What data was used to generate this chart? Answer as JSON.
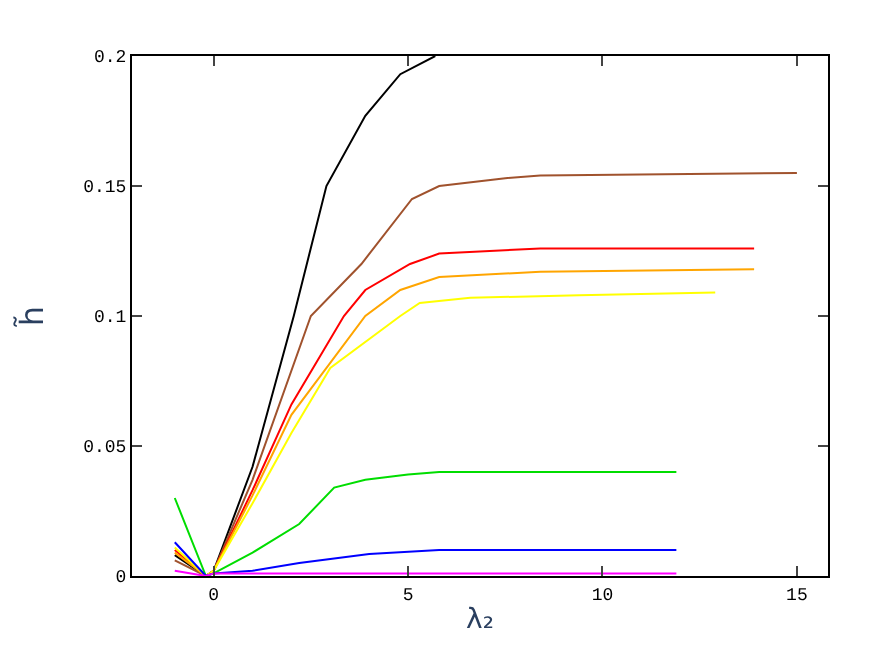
{
  "chart_data": {
    "type": "line",
    "xlabel": "λ₂",
    "ylabel": "h̃",
    "xlim": [
      -2.1,
      15.8
    ],
    "ylim": [
      0,
      0.2
    ],
    "xticks": [
      0,
      5,
      10,
      15
    ],
    "yticks": [
      0,
      0.05,
      0.1,
      0.15,
      0.2
    ],
    "marker": "none",
    "line_style": "solid",
    "series": [
      {
        "color": "#000000",
        "x": [
          -1,
          -0.2,
          0,
          1,
          2.06,
          2.9,
          3.9,
          4.8,
          5.7
        ],
        "values": [
          0.008,
          0,
          0.002,
          0.042,
          0.1,
          0.15,
          0.177,
          0.193,
          0.2
        ]
      },
      {
        "color": "#a0522d",
        "x": [
          -1,
          -0.2,
          0,
          1,
          2.5,
          3.8,
          5.1,
          5.8,
          7.5,
          8.4,
          15
        ],
        "values": [
          0.006,
          0,
          0.002,
          0.037,
          0.1,
          0.12,
          0.145,
          0.15,
          0.153,
          0.154,
          0.155
        ]
      },
      {
        "color": "#ff0000",
        "x": [
          -1,
          -0.2,
          0,
          1,
          2,
          3.35,
          3.9,
          5.05,
          5.8,
          8.4,
          13.9
        ],
        "values": [
          0.01,
          0,
          0.002,
          0.033,
          0.066,
          0.1,
          0.11,
          0.12,
          0.124,
          0.126,
          0.126
        ]
      },
      {
        "color": "#ffa500",
        "x": [
          -1,
          -0.2,
          0,
          1,
          2,
          3.9,
          4.8,
          5.8,
          8.4,
          13.9
        ],
        "values": [
          0.009,
          0,
          0.002,
          0.031,
          0.062,
          0.1,
          0.11,
          0.115,
          0.117,
          0.118
        ]
      },
      {
        "color": "#ffff00",
        "x": [
          -1,
          -0.2,
          0,
          1,
          2,
          3,
          4.8,
          5.3,
          6.6,
          9.4,
          12.9
        ],
        "values": [
          0.011,
          0,
          0.002,
          0.028,
          0.055,
          0.08,
          0.1,
          0.105,
          0.107,
          0.108,
          0.109
        ]
      },
      {
        "color": "#00dd00",
        "x": [
          -1,
          -0.2,
          0,
          1,
          2.2,
          3.1,
          3.9,
          5,
          5.8,
          11.9
        ],
        "values": [
          0.03,
          0,
          0.001,
          0.009,
          0.02,
          0.034,
          0.037,
          0.039,
          0.04,
          0.04
        ]
      },
      {
        "color": "#0000ff",
        "x": [
          -1,
          -0.2,
          0,
          1,
          2.2,
          4,
          5.8,
          11.9
        ],
        "values": [
          0.013,
          0,
          0.001,
          0.002,
          0.005,
          0.0085,
          0.01,
          0.01
        ]
      },
      {
        "color": "#ff00ff",
        "x": [
          -1,
          -0.2,
          0,
          3.4,
          11.9
        ],
        "values": [
          0.002,
          0,
          0.001,
          0.001,
          0.001
        ]
      }
    ]
  }
}
